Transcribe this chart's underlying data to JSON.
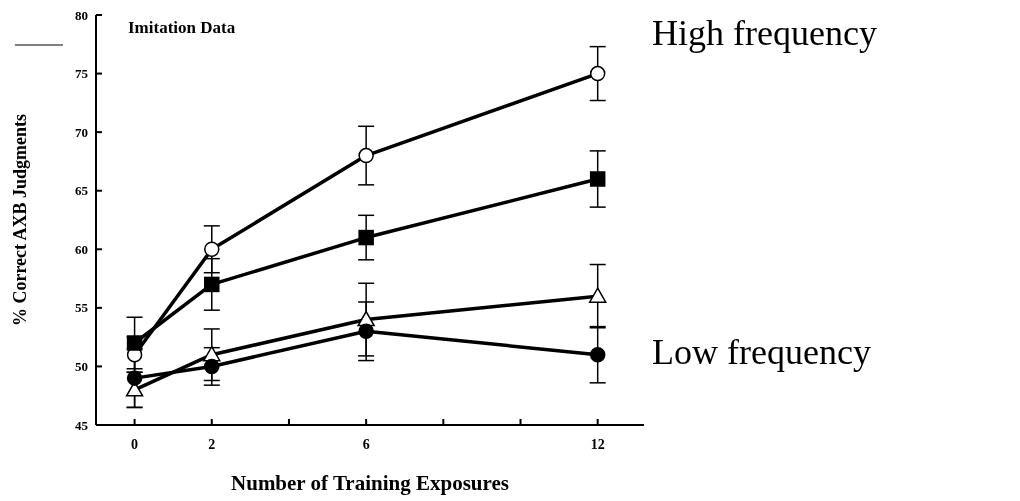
{
  "chart_data": {
    "type": "line",
    "title": "Imitation Data",
    "xlabel": "Number of Training Exposures",
    "ylabel": "% Correct AXB Judgments",
    "annotations": [
      "High frequency",
      "Low frequency"
    ],
    "x": [
      0,
      2,
      6,
      12
    ],
    "xlim": [
      -1,
      13.2
    ],
    "xticks": [
      0,
      2,
      {
        "value": 4,
        "label": null
      },
      6,
      {
        "value": 8,
        "label": null
      },
      {
        "value": 10,
        "label": null
      },
      12
    ],
    "ylim": [
      45,
      80
    ],
    "yticks": [
      45,
      50,
      55,
      60,
      65,
      70,
      75,
      80
    ],
    "grid": false,
    "legend": false,
    "line_style": "solid",
    "series": [
      {
        "color": "#000000",
        "marker": "circle",
        "colors": [
          "#ffffff",
          "#ffffff",
          "#ffffff",
          "#ffffff"
        ],
        "values": [
          51,
          60,
          68,
          75
        ],
        "errors": [
          1.5,
          2,
          2.5,
          2.3
        ]
      },
      {
        "color": "#000000",
        "marker": "square",
        "colors": [
          "#000000",
          "#000000",
          "#000000",
          "#000000"
        ],
        "values": [
          52,
          57,
          61,
          66
        ],
        "errors": [
          2.2,
          2.2,
          1.9,
          2.4
        ]
      },
      {
        "color": "#000000",
        "marker": "triangle",
        "colors": [
          "#ffffff",
          "#ffffff",
          "#ffffff",
          "#ffffff"
        ],
        "values": [
          48,
          51,
          54,
          56
        ],
        "errors": [
          1.5,
          2.2,
          3.1,
          2.7
        ]
      },
      {
        "color": "#000000",
        "marker": "circle",
        "colors": [
          "#000000",
          "#000000",
          "#000000",
          "#000000"
        ],
        "values": [
          49,
          50,
          53,
          51
        ],
        "errors": [
          2.5,
          1.6,
          2.5,
          2.4
        ]
      }
    ]
  }
}
